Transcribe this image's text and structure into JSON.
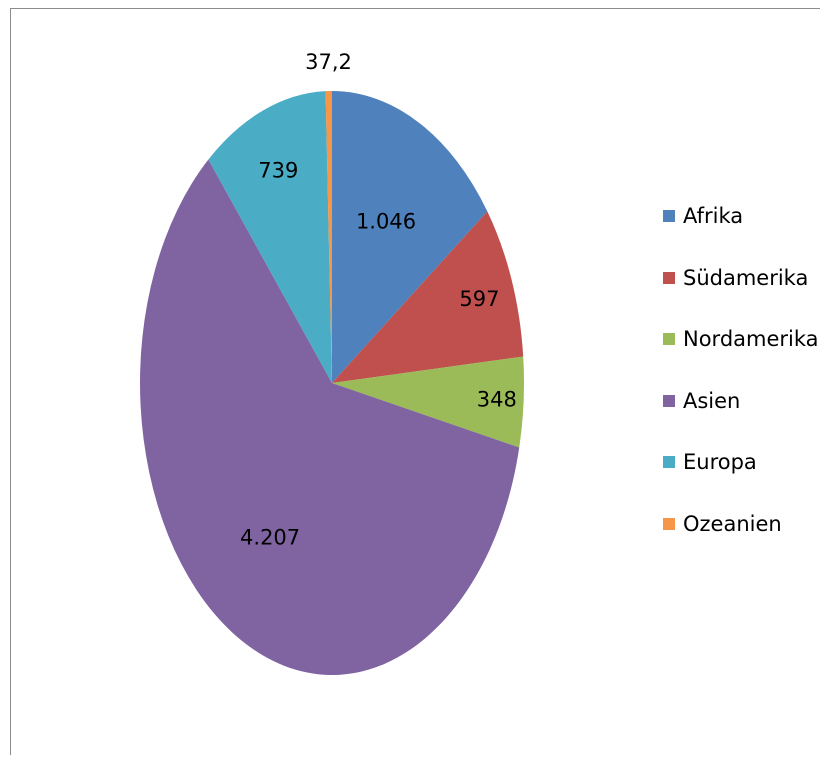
{
  "chart_data": {
    "type": "pie",
    "categories": [
      "Afrika",
      "Südamerika",
      "Nordamerika",
      "Asien",
      "Europa",
      "Ozeanien"
    ],
    "values": [
      1046,
      597,
      348,
      4207,
      739,
      37.2
    ],
    "labels": [
      "1.046",
      "597",
      "348",
      "4.207",
      "739",
      "37,2"
    ],
    "colors": [
      "#4f81bd",
      "#c0504d",
      "#9bbb59",
      "#8064a2",
      "#4bacc6",
      "#f79646"
    ],
    "start_angle": "12 o'clock",
    "direction": "clockwise",
    "legend_position": "right"
  }
}
